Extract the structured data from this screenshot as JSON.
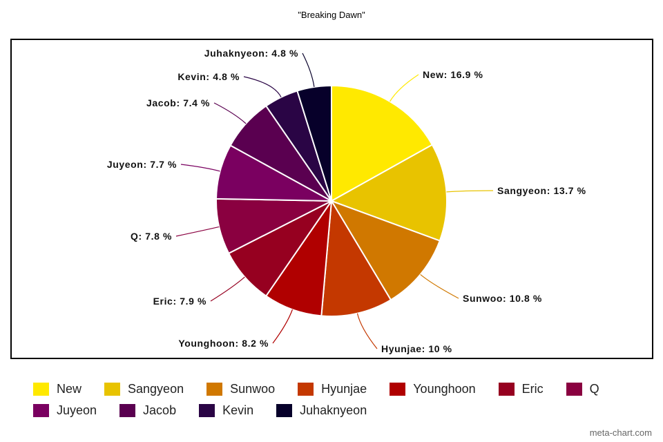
{
  "chart_data": {
    "type": "pie",
    "title": "\"Breaking Dawn\"",
    "legend_position": "bottom",
    "slices": [
      {
        "name": "New",
        "value": 16.9,
        "label": "New: 16.9 %",
        "color": "#FFE900"
      },
      {
        "name": "Sangyeon",
        "value": 13.7,
        "label": "Sangyeon: 13.7 %",
        "color": "#E8C300"
      },
      {
        "name": "Sunwoo",
        "value": 10.8,
        "label": "Sunwoo: 10.8 %",
        "color": "#D07800"
      },
      {
        "name": "Hyunjae",
        "value": 10,
        "label": "Hyunjae: 10 %",
        "color": "#C43800"
      },
      {
        "name": "Younghoon",
        "value": 8.2,
        "label": "Younghoon: 8.2 %",
        "color": "#B00000"
      },
      {
        "name": "Eric",
        "value": 7.9,
        "label": "Eric: 7.9 %",
        "color": "#960020"
      },
      {
        "name": "Q",
        "value": 7.8,
        "label": "Q: 7.8 %",
        "color": "#8A0040"
      },
      {
        "name": "Juyeon",
        "value": 7.7,
        "label": "Juyeon: 7.7 %",
        "color": "#7A0060"
      },
      {
        "name": "Jacob",
        "value": 7.4,
        "label": "Jacob: 7.4 %",
        "color": "#5A0050"
      },
      {
        "name": "Kevin",
        "value": 4.8,
        "label": "Kevin: 4.8 %",
        "color": "#2A0545"
      },
      {
        "name": "Juhaknyeon",
        "value": 4.8,
        "label": "Juhaknyeon: 4.8 %",
        "color": "#07002A"
      }
    ]
  },
  "credit": "meta-chart.com"
}
